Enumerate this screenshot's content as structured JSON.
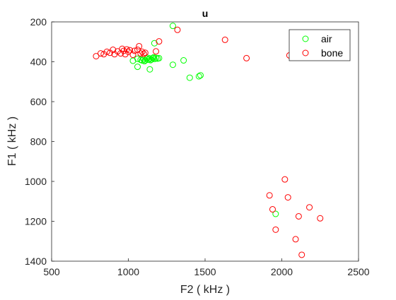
{
  "chart_data": {
    "type": "scatter",
    "title": "u",
    "xlabel": "F2 ( kHz )",
    "ylabel": "F1 ( kHz )",
    "xlim": [
      500,
      2500
    ],
    "ylim": [
      200,
      1400
    ],
    "y_reversed": true,
    "xticks": [
      "500",
      "1000",
      "1500",
      "2000",
      "2500"
    ],
    "yticks": [
      "200",
      "400",
      "600",
      "800",
      "1000",
      "1200",
      "1400"
    ],
    "grid": false,
    "legend_position": "top-right",
    "series": [
      {
        "name": "air",
        "color": "#00ff00",
        "marker": "circle-open",
        "points": [
          [
            1290,
            220
          ],
          [
            1170,
            307
          ],
          [
            1360,
            393
          ],
          [
            1290,
            415
          ],
          [
            1470,
            468
          ],
          [
            1460,
            473
          ],
          [
            1400,
            480
          ],
          [
            1140,
            438
          ],
          [
            1060,
            425
          ],
          [
            1030,
            395
          ],
          [
            1060,
            385
          ],
          [
            1080,
            390
          ],
          [
            1090,
            393
          ],
          [
            1100,
            388
          ],
          [
            1110,
            392
          ],
          [
            1120,
            385
          ],
          [
            1130,
            390
          ],
          [
            1140,
            383
          ],
          [
            1150,
            388
          ],
          [
            1160,
            382
          ],
          [
            1170,
            386
          ],
          [
            1180,
            381
          ],
          [
            1190,
            384
          ],
          [
            1200,
            382
          ],
          [
            1105,
            397
          ],
          [
            1125,
            380
          ],
          [
            1145,
            392
          ],
          [
            1165,
            378
          ],
          [
            1960,
            1163
          ]
        ]
      },
      {
        "name": "bone",
        "color": "#ff0000",
        "marker": "circle-open",
        "points": [
          [
            1320,
            240
          ],
          [
            1630,
            290
          ],
          [
            1200,
            298
          ],
          [
            1770,
            382
          ],
          [
            2050,
            368
          ],
          [
            790,
            372
          ],
          [
            820,
            358
          ],
          [
            840,
            362
          ],
          [
            860,
            350
          ],
          [
            880,
            355
          ],
          [
            900,
            340
          ],
          [
            910,
            362
          ],
          [
            930,
            348
          ],
          [
            950,
            358
          ],
          [
            960,
            335
          ],
          [
            970,
            345
          ],
          [
            980,
            362
          ],
          [
            990,
            338
          ],
          [
            1000,
            350
          ],
          [
            1010,
            342
          ],
          [
            1030,
            365
          ],
          [
            1040,
            345
          ],
          [
            1060,
            340
          ],
          [
            1070,
            322
          ],
          [
            1080,
            358
          ],
          [
            1090,
            350
          ],
          [
            1100,
            360
          ],
          [
            1110,
            355
          ],
          [
            1180,
            348
          ],
          [
            1920,
            1070
          ],
          [
            2020,
            990
          ],
          [
            2040,
            1080
          ],
          [
            1940,
            1140
          ],
          [
            2090,
            1290
          ],
          [
            2180,
            1130
          ],
          [
            2110,
            1175
          ],
          [
            1960,
            1242
          ],
          [
            2250,
            1185
          ],
          [
            2130,
            1368
          ]
        ]
      }
    ]
  }
}
